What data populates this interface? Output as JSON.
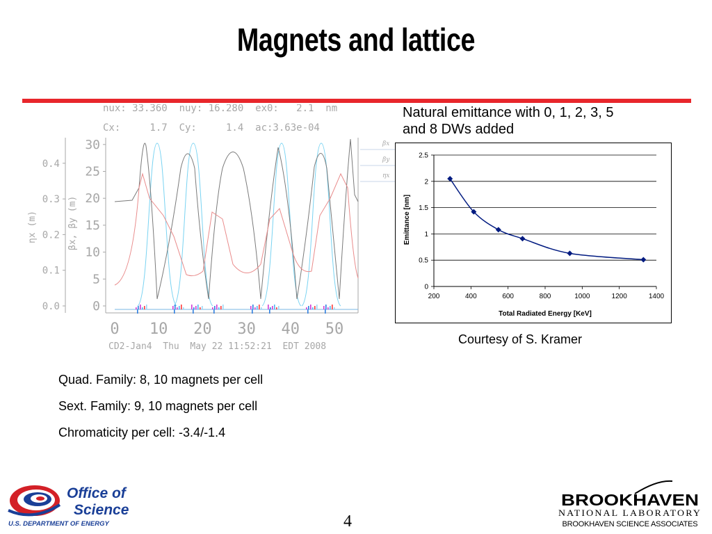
{
  "slide": {
    "title": "Magnets and lattice",
    "page_number": "4",
    "chart_caption_line1": "Natural emittance with 0, 1, 2, 3, 5",
    "chart_caption_line2": "and 8 DWs added",
    "courtesy": "Courtesy of S. Kramer",
    "bullets": [
      "Quad. Family: 8, 10 magnets per cell",
      "Sext. Family: 9, 10 magnets per cell",
      "Chromaticity per cell: -3.4/-1.4"
    ]
  },
  "lattice_plot": {
    "header_line1": "nux: 33.360  nuy: 16.280  ex0:   2.1  nm",
    "header_line2": "Cx:     1.7  Cy:     1.4  ac:3.63e-04",
    "footer": "CD2-Jan4  Thu  May 22 11:52:21  EDT 2008",
    "eta_axis_label": "ηx (m)",
    "beta_axis_label": "βx, βy (m)",
    "eta_ticks": [
      "0.0",
      "0.1",
      "0.2",
      "0.3",
      "0.4"
    ],
    "beta_ticks": [
      "0",
      "5",
      "10",
      "15",
      "20",
      "25",
      "30"
    ],
    "s_ticks": [
      "0",
      "10",
      "20",
      "30",
      "40",
      "50"
    ],
    "legend": [
      "βx",
      "βy",
      "ηx"
    ],
    "colors": {
      "beta_x": "#7a7a7a",
      "beta_y": "#79d3f2",
      "eta_x": "#e98b8b",
      "axis": "#a7a7a7"
    }
  },
  "chart_data": {
    "type": "line",
    "title": "",
    "xlabel": "Total Radiated Energy [KeV]",
    "ylabel": "Emittance [nm]",
    "xlim": [
      200,
      1400
    ],
    "ylim": [
      0,
      2.5
    ],
    "x_ticks": [
      "200",
      "400",
      "600",
      "800",
      "1000",
      "1200",
      "1400"
    ],
    "y_ticks": [
      "0",
      "0.5",
      "1",
      "1.5",
      "2",
      "2.5"
    ],
    "grid": true,
    "series": [
      {
        "x": [
          287,
          415,
          548,
          678,
          933,
          1330
        ],
        "values": [
          2.05,
          1.42,
          1.08,
          0.91,
          0.63,
          0.51
        ],
        "color": "#001a80"
      }
    ]
  },
  "logos": {
    "office_line1": "Office of",
    "office_line2": "Science",
    "office_dept": "U.S. DEPARTMENT OF ENERGY",
    "bnl_name": "BROOKHAVEN",
    "bnl_lab": "NATIONAL LABORATORY",
    "bnl_assoc": "BROOKHAVEN SCIENCE ASSOCIATES",
    "colors": {
      "office_blue": "#1a3f97",
      "office_red": "#d32027",
      "bnl_black": "#000000"
    }
  }
}
